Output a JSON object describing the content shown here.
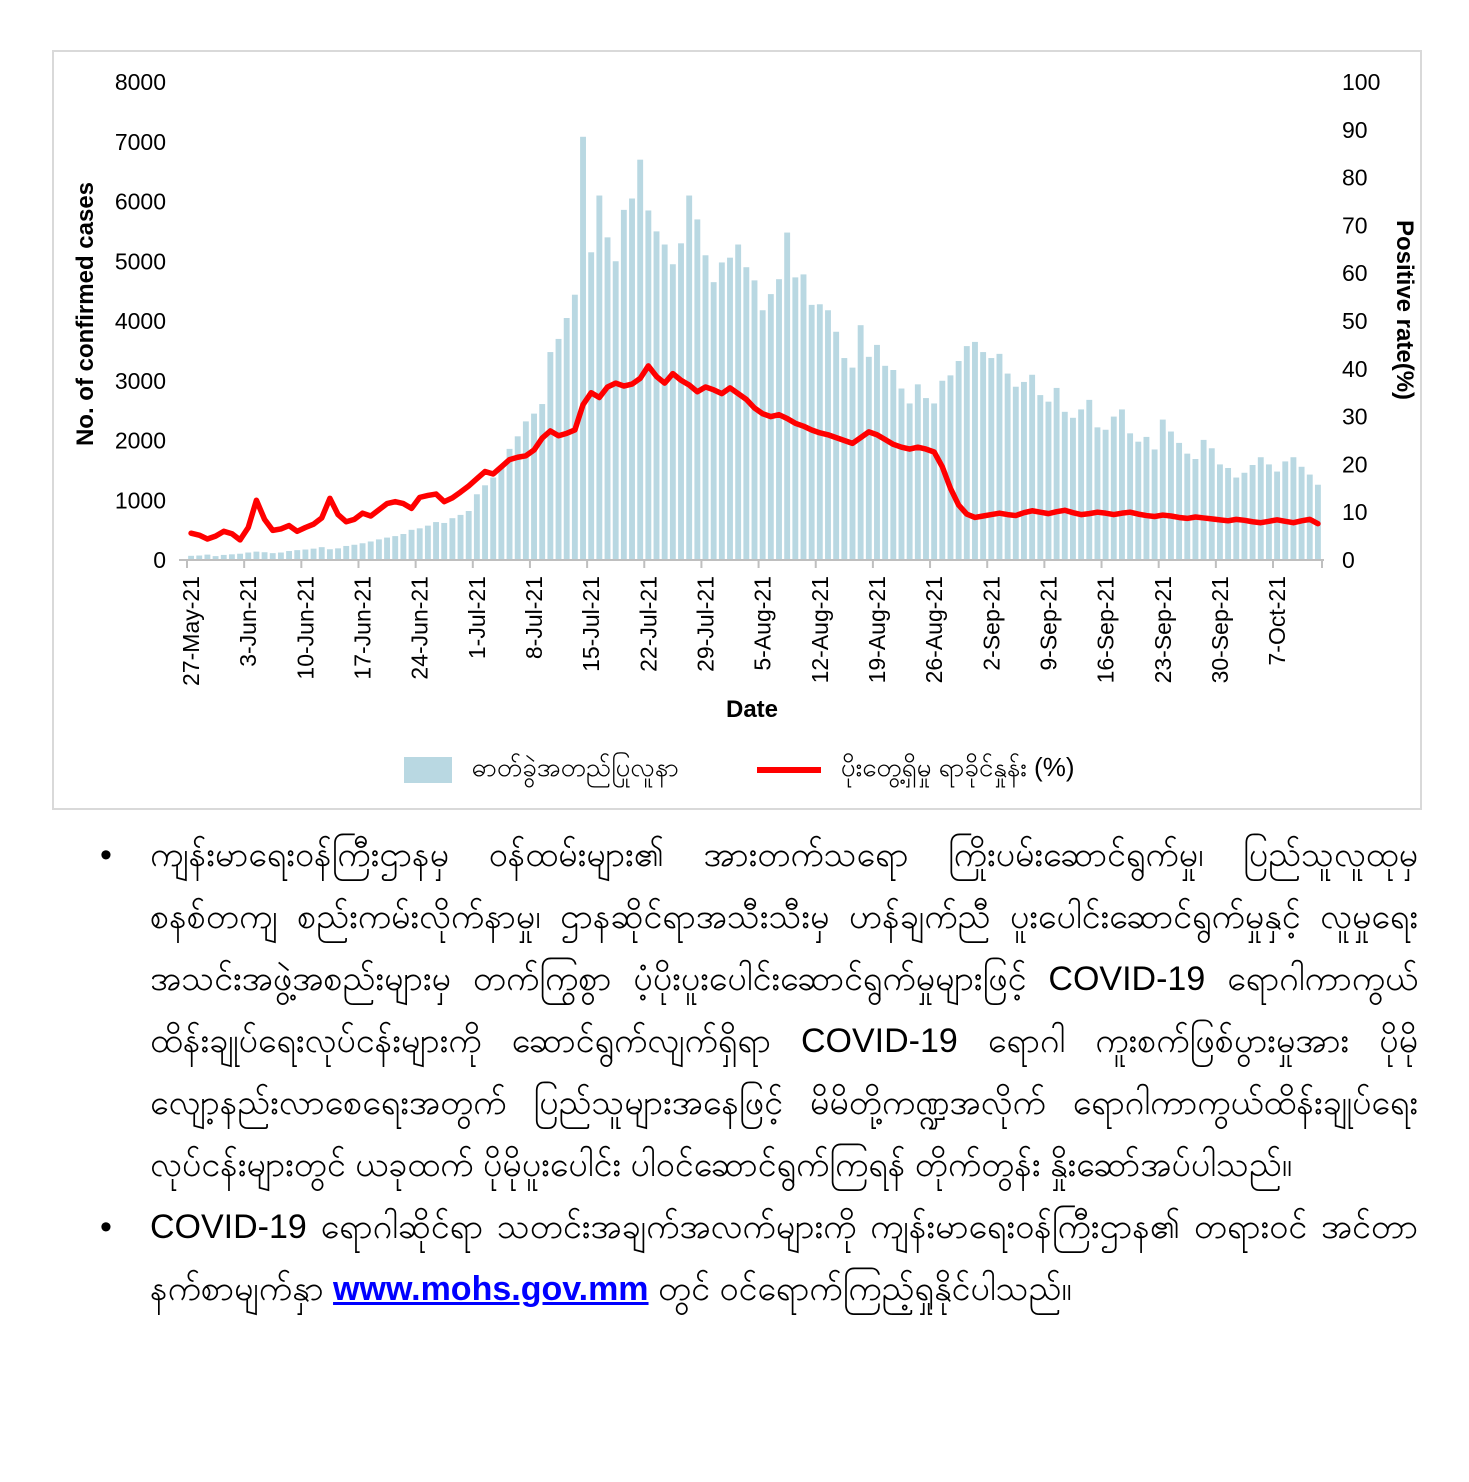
{
  "chart": {
    "left_axis_title": "No. of confirmed cases",
    "right_axis_title": "Positive rate(%)",
    "x_axis_title": "Date",
    "legend": {
      "bars_label": "ဓာတ်ခွဲအတည်ပြုလူနာ",
      "line_label": "ပိုးတွေ့ရှိမှု ရာခိုင်နှုန်း (%)"
    }
  },
  "chart_data": {
    "type": "bar",
    "title": "",
    "grid": false,
    "legend_position": "bottom",
    "bar_color": "#b9d8e2",
    "line_color": "#ff0000",
    "left_axis": {
      "label": "No. of confirmed cases",
      "min": 0,
      "max": 8000,
      "tick_step": 1000
    },
    "right_axis": {
      "label": "Positive rate(%)",
      "min": 0,
      "max": 100,
      "tick_step": 10
    },
    "x_axis": {
      "label": "Date",
      "tick_interval_days": 7,
      "tick_labels": [
        "27-May-21",
        "3-Jun-21",
        "10-Jun-21",
        "17-Jun-21",
        "24-Jun-21",
        "1-Jul-21",
        "8-Jul-21",
        "15-Jul-21",
        "22-Jul-21",
        "29-Jul-21",
        "5-Aug-21",
        "12-Aug-21",
        "19-Aug-21",
        "26-Aug-21",
        "2-Sep-21",
        "9-Sep-21",
        "16-Sep-21",
        "23-Sep-21",
        "30-Sep-21",
        "7-Oct-21"
      ]
    },
    "x": [
      "27-May-21",
      "28-May-21",
      "29-May-21",
      "30-May-21",
      "31-May-21",
      "1-Jun-21",
      "2-Jun-21",
      "3-Jun-21",
      "4-Jun-21",
      "5-Jun-21",
      "6-Jun-21",
      "7-Jun-21",
      "8-Jun-21",
      "9-Jun-21",
      "10-Jun-21",
      "11-Jun-21",
      "12-Jun-21",
      "13-Jun-21",
      "14-Jun-21",
      "15-Jun-21",
      "16-Jun-21",
      "17-Jun-21",
      "18-Jun-21",
      "19-Jun-21",
      "20-Jun-21",
      "21-Jun-21",
      "22-Jun-21",
      "23-Jun-21",
      "24-Jun-21",
      "25-Jun-21",
      "26-Jun-21",
      "27-Jun-21",
      "28-Jun-21",
      "29-Jun-21",
      "30-Jun-21",
      "1-Jul-21",
      "2-Jul-21",
      "3-Jul-21",
      "4-Jul-21",
      "5-Jul-21",
      "6-Jul-21",
      "7-Jul-21",
      "8-Jul-21",
      "9-Jul-21",
      "10-Jul-21",
      "11-Jul-21",
      "12-Jul-21",
      "13-Jul-21",
      "14-Jul-21",
      "15-Jul-21",
      "16-Jul-21",
      "17-Jul-21",
      "18-Jul-21",
      "19-Jul-21",
      "20-Jul-21",
      "21-Jul-21",
      "22-Jul-21",
      "23-Jul-21",
      "24-Jul-21",
      "25-Jul-21",
      "26-Jul-21",
      "27-Jul-21",
      "28-Jul-21",
      "29-Jul-21",
      "30-Jul-21",
      "31-Jul-21",
      "1-Aug-21",
      "2-Aug-21",
      "3-Aug-21",
      "4-Aug-21",
      "5-Aug-21",
      "6-Aug-21",
      "7-Aug-21",
      "8-Aug-21",
      "9-Aug-21",
      "10-Aug-21",
      "11-Aug-21",
      "12-Aug-21",
      "13-Aug-21",
      "14-Aug-21",
      "15-Aug-21",
      "16-Aug-21",
      "17-Aug-21",
      "18-Aug-21",
      "19-Aug-21",
      "20-Aug-21",
      "21-Aug-21",
      "22-Aug-21",
      "23-Aug-21",
      "24-Aug-21",
      "25-Aug-21",
      "26-Aug-21",
      "27-Aug-21",
      "28-Aug-21",
      "29-Aug-21",
      "30-Aug-21",
      "31-Aug-21",
      "1-Sep-21",
      "2-Sep-21",
      "3-Sep-21",
      "4-Sep-21",
      "5-Sep-21",
      "6-Sep-21",
      "7-Sep-21",
      "8-Sep-21",
      "9-Sep-21",
      "10-Sep-21",
      "11-Sep-21",
      "12-Sep-21",
      "13-Sep-21",
      "14-Sep-21",
      "15-Sep-21",
      "16-Sep-21",
      "17-Sep-21",
      "18-Sep-21",
      "19-Sep-21",
      "20-Sep-21",
      "21-Sep-21",
      "22-Sep-21",
      "23-Sep-21",
      "24-Sep-21",
      "25-Sep-21",
      "26-Sep-21",
      "27-Sep-21",
      "28-Sep-21",
      "29-Sep-21",
      "30-Sep-21",
      "1-Oct-21",
      "2-Oct-21",
      "3-Oct-21",
      "4-Oct-21",
      "5-Oct-21",
      "6-Oct-21",
      "7-Oct-21",
      "8-Oct-21",
      "9-Oct-21",
      "10-Oct-21",
      "11-Oct-21",
      "12-Oct-21"
    ],
    "series": [
      {
        "name": "ဓာတ်ခွဲအတည်ပြုလူနာ",
        "type": "bar",
        "axis": "left",
        "values": [
          70,
          75,
          90,
          65,
          85,
          95,
          105,
          125,
          140,
          130,
          115,
          125,
          150,
          165,
          175,
          190,
          215,
          180,
          195,
          235,
          255,
          280,
          310,
          345,
          375,
          400,
          435,
          505,
          530,
          575,
          635,
          620,
          700,
          755,
          820,
          1100,
          1250,
          1380,
          1580,
          1860,
          2070,
          2320,
          2450,
          2610,
          3480,
          3700,
          4050,
          4440,
          7083,
          5150,
          6100,
          5400,
          5000,
          5860,
          6050,
          6700,
          5850,
          5500,
          5280,
          4950,
          5300,
          6100,
          5700,
          5100,
          4650,
          4980,
          5060,
          5280,
          4900,
          4680,
          4180,
          4450,
          4700,
          5480,
          4730,
          4780,
          4270,
          4280,
          4180,
          3820,
          3380,
          3220,
          3930,
          3400,
          3600,
          3250,
          3180,
          2870,
          2620,
          2940,
          2710,
          2620,
          3000,
          3090,
          3330,
          3580,
          3650,
          3480,
          3380,
          3450,
          3120,
          2900,
          2980,
          3100,
          2760,
          2650,
          2880,
          2480,
          2380,
          2520,
          2680,
          2220,
          2180,
          2400,
          2520,
          2120,
          1980,
          2060,
          1850,
          2350,
          2150,
          1960,
          1780,
          1690,
          2010,
          1870,
          1600,
          1540,
          1380,
          1460,
          1590,
          1720,
          1600,
          1480,
          1650,
          1720,
          1560,
          1430,
          1260
        ]
      },
      {
        "name": "ပိုးတွေ့ရှိမှု ရာခိုင်နှုန်း (%)",
        "type": "line",
        "axis": "right",
        "values": [
          5.6,
          5.2,
          4.4,
          5.0,
          6.0,
          5.5,
          4.2,
          6.8,
          12.5,
          8.5,
          6.2,
          6.5,
          7.2,
          6.0,
          6.8,
          7.5,
          8.8,
          12.9,
          9.5,
          8.0,
          8.5,
          9.8,
          9.2,
          10.5,
          11.8,
          12.2,
          11.8,
          10.8,
          13.1,
          13.5,
          13.8,
          12.2,
          13.0,
          14.2,
          15.5,
          17.0,
          18.5,
          18.0,
          19.5,
          21.0,
          21.5,
          21.8,
          23.0,
          25.5,
          27.0,
          26.0,
          26.5,
          27.2,
          32.5,
          35.0,
          34.0,
          36.2,
          37.0,
          36.4,
          36.8,
          38.0,
          40.6,
          38.4,
          37.0,
          39.0,
          37.6,
          36.6,
          35.2,
          36.2,
          35.6,
          34.8,
          36.0,
          34.8,
          33.6,
          31.8,
          30.6,
          30.0,
          30.4,
          29.6,
          28.6,
          28.0,
          27.2,
          26.6,
          26.2,
          25.6,
          25.0,
          24.4,
          25.6,
          26.8,
          26.2,
          25.2,
          24.2,
          23.6,
          23.2,
          23.6,
          23.2,
          22.6,
          19.5,
          15.0,
          11.5,
          9.6,
          8.9,
          9.2,
          9.5,
          9.8,
          9.5,
          9.3,
          9.9,
          10.3,
          10.0,
          9.7,
          10.1,
          10.4,
          9.9,
          9.5,
          9.7,
          10.0,
          9.8,
          9.5,
          9.8,
          10.0,
          9.6,
          9.3,
          9.1,
          9.4,
          9.2,
          8.9,
          8.7,
          9.0,
          8.8,
          8.6,
          8.4,
          8.2,
          8.5,
          8.3,
          8.0,
          7.8,
          8.1,
          8.4,
          8.1,
          7.8,
          8.2,
          8.5,
          7.6
        ]
      }
    ]
  },
  "bullets": {
    "b1": {
      "marker": "•",
      "text": "ကျန်းမာရေးဝန်ကြီးဌာနမှ ဝန်ထမ်းများ၏ အားတက်သရော ကြိုးပမ်းဆောင်ရွက်မှု၊ ပြည်သူလူထုမှ စနစ်တကျ စည်းကမ်းလိုက်နာမှု၊ ဌာနဆိုင်ရာအသီးသီးမှ ဟန်ချက်ညီ ပူးပေါင်းဆောင်ရွက်မှုနှင့် လူမှုရေးအသင်းအဖွဲ့အစည်းများမှ တက်ကြွစွာ ပံ့ပိုးပူးပေါင်းဆောင်ရွက်မှုများဖြင့် COVID-19 ရောဂါကာကွယ်ထိန်းချုပ်ရေးလုပ်ငန်းများကို ဆောင်ရွက်လျက်ရှိရာ COVID-19 ရောဂါ ကူးစက်ဖြစ်ပွားမှုအား ပိုမိုလျော့နည်းလာစေရေးအတွက် ပြည်သူများအနေဖြင့် မိမိတို့ကဏ္ဍအလိုက် ရောဂါကာကွယ်ထိန်းချုပ်ရေးလုပ်ငန်းများတွင် ယခုထက် ပိုမိုပူးပေါင်း ပါဝင်ဆောင်ရွက်ကြရန် တိုက်တွန်း နှိုးဆော်အပ်ပါသည်။"
    },
    "b2": {
      "marker": "•",
      "text_before": "COVID-19 ရောဂါဆိုင်ရာ သတင်းအချက်အလက်များကို ကျန်းမာရေးဝန်ကြီးဌာန၏ တရားဝင် အင်တာနက်စာမျက်နှာ ",
      "link_text": "www.mohs.gov.mm",
      "text_after": " တွင် ဝင်ရောက်ကြည့်ရှုနိုင်ပါသည်။"
    }
  }
}
